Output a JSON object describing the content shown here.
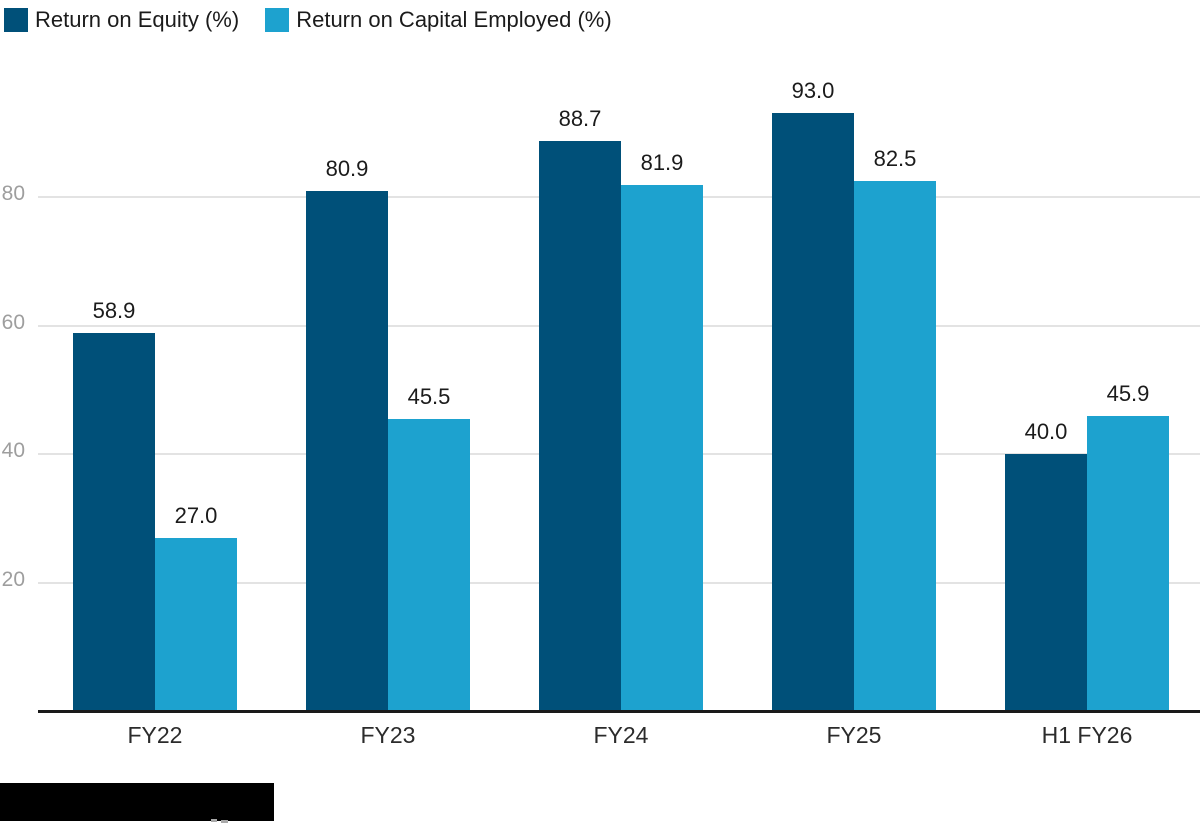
{
  "chart_data": {
    "type": "bar",
    "title": "",
    "xlabel": "",
    "ylabel": "",
    "categories": [
      "FY22",
      "FY23",
      "FY24",
      "FY25",
      "H1 FY26"
    ],
    "series": [
      {
        "name": "Return on Equity (%)",
        "color": "#005079",
        "values": [
          58.9,
          80.9,
          88.7,
          93.0,
          40.0
        ]
      },
      {
        "name": "Return on Capital Employed (%)",
        "color": "#1da2cf",
        "values": [
          27.0,
          45.5,
          81.9,
          82.5,
          45.9
        ]
      }
    ],
    "yticks": [
      20,
      40,
      60,
      80
    ],
    "ylim": [
      0,
      100
    ],
    "grid": "horizontal-only",
    "legend_position": "top-left",
    "value_labels_shown": true,
    "colors": {
      "axis": "#1a1a1a",
      "gridline": "#e3e3e3",
      "y_tick_text": "#9e9e9e",
      "x_tick_text": "#2b2b2b",
      "value_label_text": "#1b1b1b",
      "legend_text": "#1b1b1b",
      "background": "#ffffff",
      "redaction": "#000000"
    }
  },
  "redaction": {
    "present": true
  }
}
